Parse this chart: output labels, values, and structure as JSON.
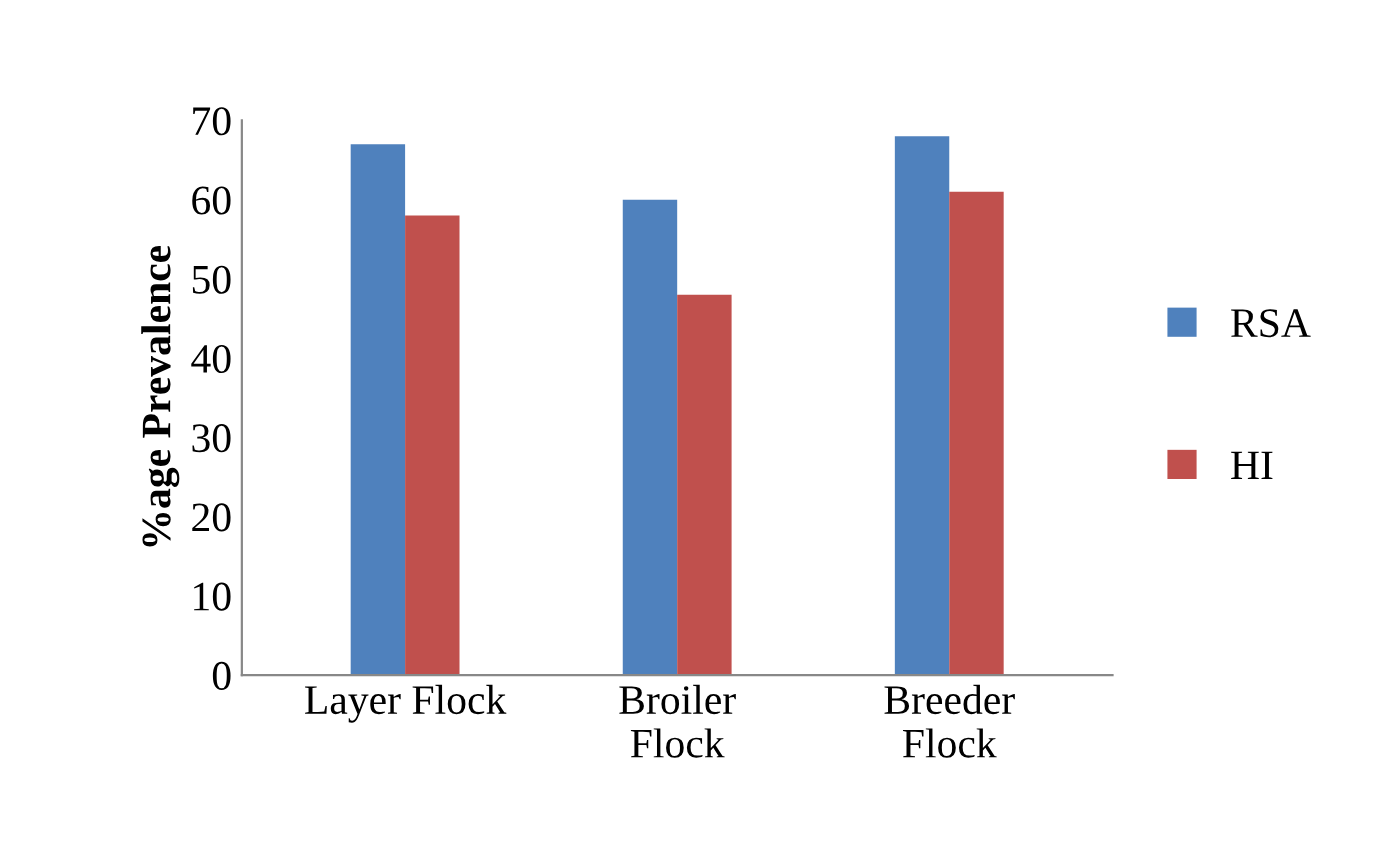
{
  "chart_data": {
    "type": "bar",
    "ylabel": "%age Prevalence",
    "categories": [
      "Layer Flock",
      "Broiler\nFlock",
      "Breeder\nFlock"
    ],
    "series": [
      {
        "name": "RSA",
        "color": "#4f81bd",
        "values": [
          67,
          60,
          68
        ]
      },
      {
        "name": "HI",
        "color": "#c0504d",
        "values": [
          58,
          48,
          61
        ]
      }
    ],
    "ylim": [
      0,
      70
    ],
    "yticks": [
      0,
      10,
      20,
      30,
      40,
      50,
      60,
      70
    ],
    "grid": false,
    "legend": "right"
  }
}
